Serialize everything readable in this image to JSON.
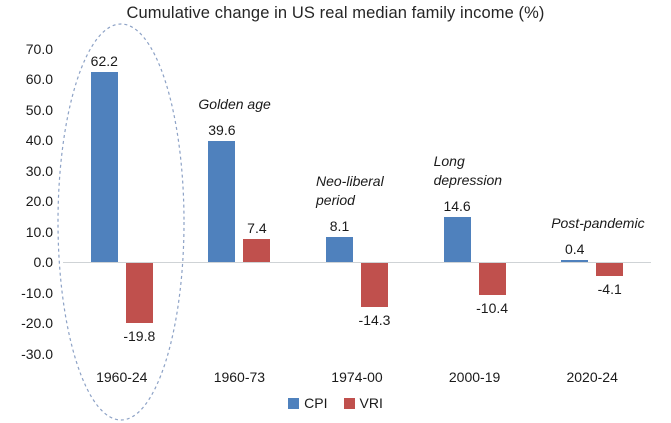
{
  "chart_data": {
    "type": "bar",
    "title": "Cumulative change in US real median family income (%)",
    "categories": [
      "1960-24",
      "1960-73",
      "1974-00",
      "2000-19",
      "2020-24"
    ],
    "series": [
      {
        "name": "CPI",
        "color": "#4F81BD",
        "values": [
          62.2,
          39.6,
          8.1,
          14.6,
          0.4
        ]
      },
      {
        "name": "VRI",
        "color": "#C0504D",
        "values": [
          -19.8,
          7.4,
          -14.3,
          -10.4,
          -4.1
        ]
      }
    ],
    "value_labels": [
      "62.2",
      "-19.8",
      "39.6",
      "7.4",
      "8.1",
      "-14.3",
      "14.6",
      "-10.4",
      "0.4",
      "-4.1"
    ],
    "annotations": [
      {
        "category_index": 1,
        "lines": [
          "Golden age"
        ]
      },
      {
        "category_index": 2,
        "lines": [
          "Neo-liberal",
          "period"
        ]
      },
      {
        "category_index": 3,
        "lines": [
          "Long",
          "depression"
        ]
      },
      {
        "category_index": 4,
        "lines": [
          "Post-pandemic"
        ]
      }
    ],
    "highlight": {
      "category": "1960-24",
      "shape": "dashed-ellipse",
      "color": "#8DA2C6"
    },
    "y_tick_labels": [
      "70.0",
      "60.0",
      "50.0",
      "40.0",
      "30.0",
      "20.0",
      "10.0",
      "0.0",
      "-10.0",
      "-20.0",
      "-30.0"
    ],
    "ylim": [
      -30,
      70
    ],
    "grid": "off",
    "legend": [
      "CPI",
      "VRI"
    ],
    "legend_position": "bottom"
  }
}
